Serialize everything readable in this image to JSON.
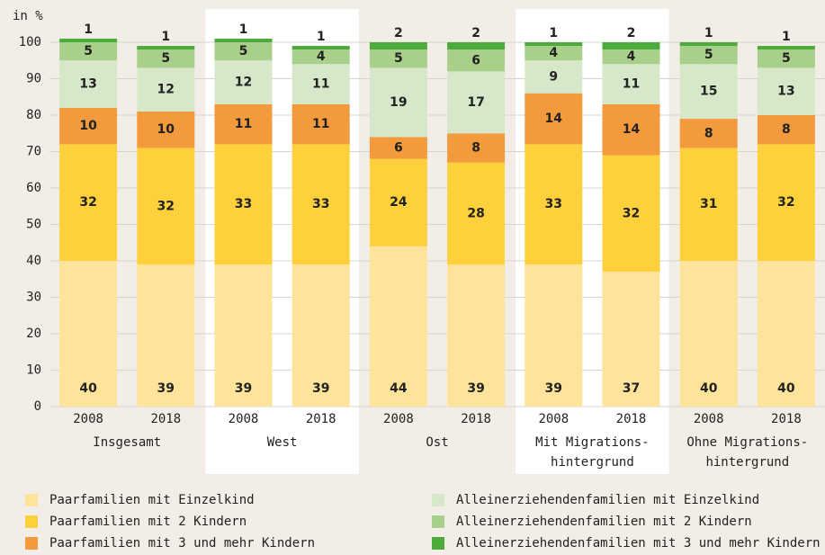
{
  "chart_data": {
    "type": "stacked-bar",
    "ylabel": "in %",
    "categories": [
      "2008",
      "2018",
      "2008",
      "2018",
      "2008",
      "2018",
      "2008",
      "2018",
      "2008",
      "2018"
    ],
    "groups": [
      [
        "Insgesamt"
      ],
      [
        "West"
      ],
      [
        "Ost"
      ],
      [
        "Mit Migrations-",
        "hintergrund"
      ],
      [
        "Ohne Migrations-",
        "hintergrund"
      ]
    ],
    "series": [
      {
        "name": "Paarfamilien mit Einzelkind",
        "color": "#fde49a",
        "values": [
          40,
          39,
          39,
          39,
          44,
          39,
          39,
          37,
          40,
          40
        ]
      },
      {
        "name": "Paarfamilien mit 2 Kindern",
        "color": "#fdd03c",
        "values": [
          32,
          32,
          33,
          33,
          24,
          28,
          33,
          32,
          31,
          32
        ]
      },
      {
        "name": "Paarfamilien mit 3 und mehr Kindern",
        "color": "#f39a3d",
        "values": [
          10,
          10,
          11,
          11,
          6,
          8,
          14,
          14,
          8,
          8
        ]
      },
      {
        "name": "Alleinerziehendenfamilien mit Einzelkind",
        "color": "#d6e8c9",
        "values": [
          13,
          12,
          12,
          11,
          19,
          17,
          9,
          11,
          15,
          13
        ]
      },
      {
        "name": "Alleinerziehendenfamilien mit 2 Kindern",
        "color": "#a9d08b",
        "values": [
          5,
          5,
          5,
          4,
          5,
          6,
          4,
          4,
          5,
          5
        ]
      },
      {
        "name": "Alleinerziehendenfamilien mit 3 und mehr Kindern",
        "color": "#4bac3b",
        "values": [
          1,
          1,
          1,
          1,
          2,
          2,
          1,
          2,
          1,
          1
        ]
      }
    ],
    "ylim": [
      0,
      100
    ],
    "yticks": [
      0,
      10,
      20,
      30,
      40,
      50,
      60,
      70,
      80,
      90,
      100
    ],
    "grid": true
  }
}
